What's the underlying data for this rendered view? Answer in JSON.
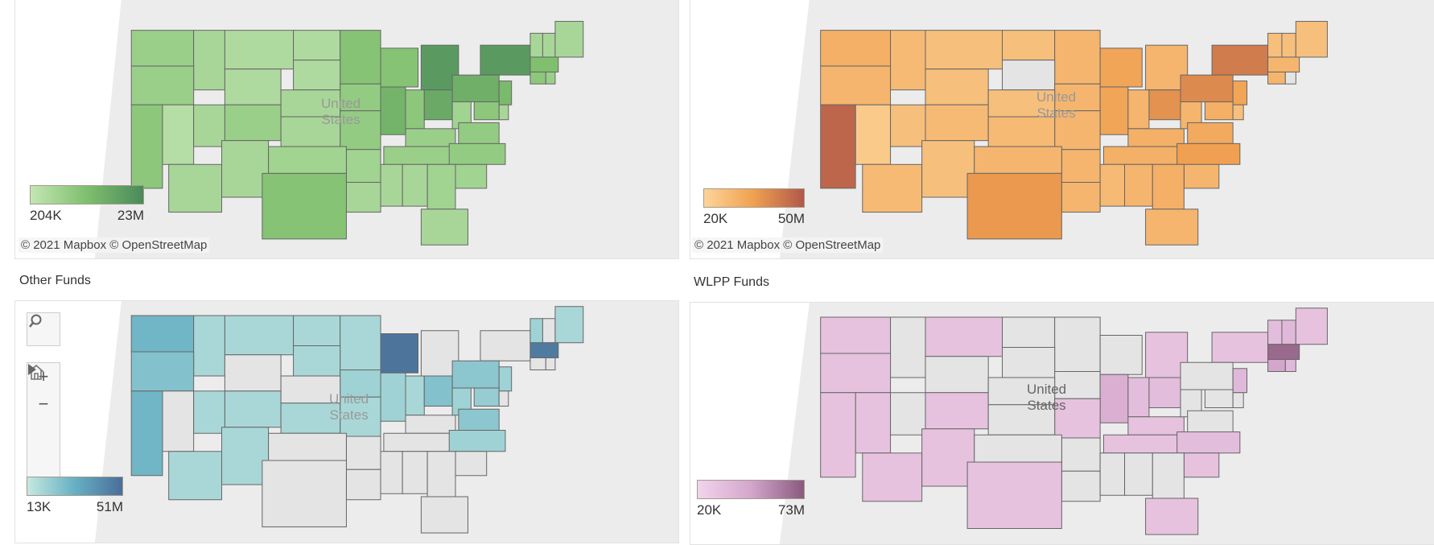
{
  "panels": [
    {
      "id": "total",
      "title": "",
      "legend": {
        "min": "204K",
        "max": "23M",
        "colors": [
          "#c3e6b4",
          "#7fbf6e",
          "#4a8a5a"
        ]
      },
      "attribution": "© 2021 Mapbox  © OpenStreetMap",
      "country_label": [
        "United",
        "States"
      ],
      "states": {
        "WA": 0.3,
        "ID": 0.2,
        "MT": 0.15,
        "ND": 0.15,
        "MN": 0.45,
        "WI": 0.45,
        "MI": 0.85,
        "NY": 0.85,
        "MA": 0.5,
        "VT": 0.2,
        "NH": 0.2,
        "ME": 0.2,
        "OR": 0.3,
        "NV": 0.1,
        "WY": 0.15,
        "SD": 0.15,
        "IA": 0.35,
        "IL": 0.6,
        "IN": 0.4,
        "OH": 0.7,
        "PA": 0.65,
        "NJ": 0.55,
        "CT": 0.4,
        "RI": 0.3,
        "CA": 0.4,
        "UT": 0.2,
        "CO": 0.3,
        "NE": 0.2,
        "MO": 0.35,
        "KY": 0.3,
        "WV": 0.25,
        "VA": 0.35,
        "MD": 0.4,
        "DE": 0.2,
        "AZ": 0.2,
        "NM": 0.2,
        "KS": 0.2,
        "AR": 0.25,
        "TN": 0.3,
        "NC": 0.35,
        "SC": 0.25,
        "OK": 0.25,
        "LA": 0.2,
        "MS": 0.2,
        "AL": 0.2,
        "GA": 0.25,
        "TX": 0.45,
        "FL": 0.2
      }
    },
    {
      "id": "state",
      "title": "",
      "legend": {
        "min": "20K",
        "max": "50M",
        "colors": [
          "#fcd49a",
          "#f0a050",
          "#b0584a"
        ]
      },
      "attribution": "© 2021 Mapbox  © OpenStreetMap",
      "country_label": [
        "United",
        "States"
      ],
      "states": {
        "WA": 0.35,
        "ID": 0.25,
        "MT": 0.2,
        "ND": 0.2,
        "MN": 0.3,
        "WI": 0.45,
        "MI": 0.3,
        "NY": 0.75,
        "MA": 0.3,
        "VT": 0.2,
        "NH": 0.2,
        "ME": 0.2,
        "OR": 0.3,
        "NV": 0.1,
        "WY": 0.2,
        "SD": null,
        "IA": 0.3,
        "IL": 0.45,
        "IN": 0.3,
        "OH": 0.6,
        "PA": 0.65,
        "NJ": 0.45,
        "CT": 0.3,
        "RI": null,
        "CA": 0.9,
        "UT": 0.2,
        "CO": 0.25,
        "NE": 0.2,
        "MO": 0.3,
        "KY": 0.35,
        "WV": 0.3,
        "VA": 0.4,
        "MD": 0.35,
        "DE": 0.2,
        "AZ": 0.25,
        "NM": 0.2,
        "KS": 0.25,
        "AR": 0.3,
        "TN": 0.35,
        "NC": 0.5,
        "SC": 0.3,
        "OK": 0.3,
        "LA": 0.3,
        "MS": 0.25,
        "AL": 0.3,
        "GA": 0.35,
        "TX": 0.55,
        "FL": 0.3
      }
    },
    {
      "id": "other",
      "title": "Other Funds",
      "legend": {
        "min": "13K",
        "max": "51M",
        "colors": [
          "#c5e8df",
          "#66b0c4",
          "#4a6e98"
        ]
      },
      "country_label": [
        "United",
        "States"
      ],
      "controls": {
        "search": "search",
        "zoom_in": "+",
        "zoom_out": "−",
        "home": "home",
        "expand": "play"
      },
      "states": {
        "WA": 0.45,
        "ID": 0.15,
        "MT": 0.15,
        "ND": 0.15,
        "MN": 0.15,
        "WI": 0.95,
        "MI": null,
        "NY": null,
        "MA": 0.9,
        "VT": 0.2,
        "NH": null,
        "ME": 0.15,
        "OR": 0.35,
        "NV": null,
        "WY": null,
        "SD": 0.15,
        "IA": 0.2,
        "IL": 0.2,
        "IN": 0.15,
        "OH": 0.35,
        "PA": 0.3,
        "NJ": 0.2,
        "CT": null,
        "RI": null,
        "CA": 0.45,
        "UT": 0.15,
        "CO": 0.15,
        "NE": null,
        "MO": 0.15,
        "KY": null,
        "WV": 0.2,
        "VA": 0.3,
        "MD": 0.25,
        "DE": null,
        "AZ": 0.15,
        "NM": 0.15,
        "KS": 0.15,
        "AR": null,
        "TN": null,
        "NC": 0.2,
        "SC": null,
        "OK": null,
        "LA": null,
        "MS": null,
        "AL": null,
        "GA": null,
        "TX": null,
        "FL": null
      }
    },
    {
      "id": "wlpp",
      "title": "WLPP Funds",
      "legend": {
        "min": "20K",
        "max": "73M",
        "colors": [
          "#f2d4ec",
          "#d4a6cc",
          "#8a5a7e"
        ]
      },
      "country_label": [
        "United",
        "States"
      ],
      "states": {
        "WA": 0.2,
        "ID": null,
        "MT": 0.2,
        "ND": null,
        "MN": null,
        "WI": null,
        "MI": 0.2,
        "NY": 0.2,
        "MA": 0.9,
        "VT": 0.25,
        "NH": 0.3,
        "ME": 0.2,
        "OR": 0.2,
        "NV": 0.2,
        "WY": null,
        "SD": null,
        "IA": null,
        "IL": 0.4,
        "IN": 0.25,
        "OH": 0.25,
        "PA": null,
        "NJ": 0.3,
        "CT": 0.5,
        "RI": 0.3,
        "CA": 0.2,
        "UT": null,
        "CO": 0.2,
        "NE": null,
        "MO": 0.2,
        "KY": 0.2,
        "WV": null,
        "VA": null,
        "MD": null,
        "DE": null,
        "AZ": 0.2,
        "NM": 0.2,
        "KS": null,
        "AR": null,
        "TN": 0.2,
        "NC": 0.25,
        "SC": 0.2,
        "OK": null,
        "LA": null,
        "MS": null,
        "AL": null,
        "GA": null,
        "TX": 0.2,
        "FL": 0.2
      }
    }
  ]
}
